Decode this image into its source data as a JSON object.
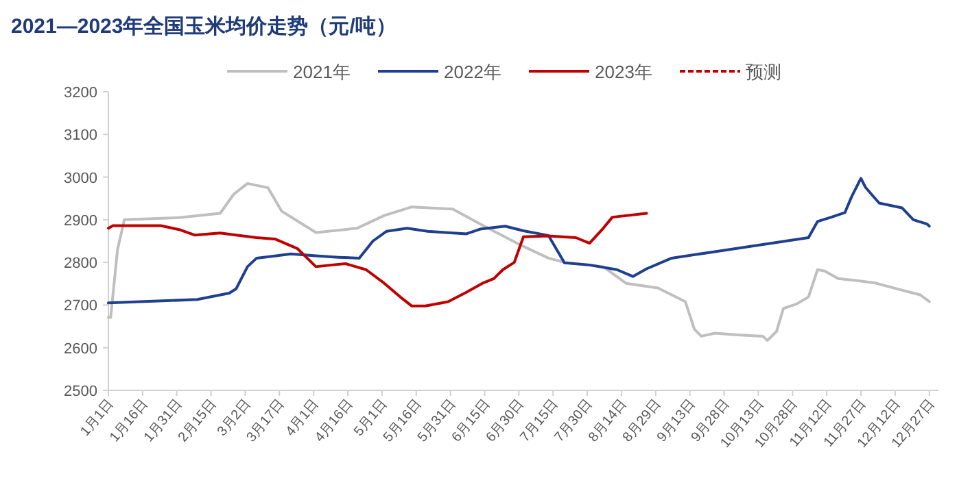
{
  "chart_data": {
    "type": "line",
    "title": "2021—2023年全国玉米均价走势（元/吨）",
    "xlim": [
      "--01-01",
      "--12-31"
    ],
    "xticks": [
      {
        "value": "--01-01",
        "label": "1月1日"
      },
      {
        "value": "--01-16",
        "label": "1月16日"
      },
      {
        "value": "--01-31",
        "label": "1月31日"
      },
      {
        "value": "--02-15",
        "label": "2月15日"
      },
      {
        "value": "--03-02",
        "label": "3月2日"
      },
      {
        "value": "--03-17",
        "label": "3月17日"
      },
      {
        "value": "--04-01",
        "label": "4月1日"
      },
      {
        "value": "--04-16",
        "label": "4月16日"
      },
      {
        "value": "--05-01",
        "label": "5月1日"
      },
      {
        "value": "--05-16",
        "label": "5月16日"
      },
      {
        "value": "--05-31",
        "label": "5月31日"
      },
      {
        "value": "--06-15",
        "label": "6月15日"
      },
      {
        "value": "--06-30",
        "label": "6月30日"
      },
      {
        "value": "--07-15",
        "label": "7月15日"
      },
      {
        "value": "--07-30",
        "label": "7月30日"
      },
      {
        "value": "--08-14",
        "label": "8月14日"
      },
      {
        "value": "--08-29",
        "label": "8月29日"
      },
      {
        "value": "--09-13",
        "label": "9月13日"
      },
      {
        "value": "--09-28",
        "label": "9月28日"
      },
      {
        "value": "--10-13",
        "label": "10月13日"
      },
      {
        "value": "--10-28",
        "label": "10月28日"
      },
      {
        "value": "--11-12",
        "label": "11月12日"
      },
      {
        "value": "--11-27",
        "label": "11月27日"
      },
      {
        "value": "--12-12",
        "label": "12月12日"
      },
      {
        "value": "--12-27",
        "label": "12月27日"
      }
    ],
    "ylim": [
      2500,
      3200
    ],
    "yticks": [
      2500,
      2600,
      2700,
      2800,
      2900,
      3000,
      3100,
      3200
    ],
    "grid": false,
    "legend": "top",
    "marker": "none",
    "series": [
      {
        "name": "2021年",
        "color": "#bfbfbf",
        "x": [
          "--01-01",
          "--01-02",
          "--01-05",
          "--01-08",
          "--02-01",
          "--02-19",
          "--02-25",
          "--03-03",
          "--03-12",
          "--03-18",
          "--04-02",
          "--04-20",
          "--05-02",
          "--05-14",
          "--06-01",
          "--06-13",
          "--07-01",
          "--07-13",
          "--07-20",
          "--08-06",
          "--08-16",
          "--08-30",
          "--09-11",
          "--09-15",
          "--09-18",
          "--09-24",
          "--10-04",
          "--10-15",
          "--10-17",
          "--10-21",
          "--10-24",
          "--10-30",
          "--11-04",
          "--11-08",
          "--11-11",
          "--11-17",
          "--11-26",
          "--12-03",
          "--12-15",
          "--12-23",
          "--12-27"
        ],
        "values": [
          2671,
          2671,
          2830,
          2900,
          2905,
          2915,
          2960,
          2985,
          2975,
          2920,
          2870,
          2880,
          2910,
          2930,
          2925,
          2890,
          2840,
          2810,
          2800,
          2790,
          2751,
          2740,
          2708,
          2643,
          2627,
          2634,
          2630,
          2627,
          2617,
          2638,
          2692,
          2703,
          2719,
          2783,
          2780,
          2762,
          2757,
          2752,
          2735,
          2724,
          2708
        ]
      },
      {
        "name": "2022年",
        "color": "#1f3f8f",
        "x": [
          "--01-01",
          "--02-09",
          "--02-23",
          "--02-26",
          "--03-03",
          "--03-07",
          "--03-15",
          "--03-22",
          "--04-03",
          "--04-12",
          "--04-21",
          "--04-27",
          "--05-03",
          "--05-12",
          "--05-21",
          "--06-07",
          "--06-13",
          "--06-24",
          "--07-02",
          "--07-13",
          "--07-20",
          "--07-31",
          "--08-12",
          "--08-19",
          "--08-25",
          "--09-05",
          "--09-25",
          "--10-15",
          "--11-04",
          "--11-08",
          "--11-14",
          "--11-20",
          "--11-23",
          "--11-27",
          "--11-29",
          "--12-05",
          "--12-15",
          "--12-20",
          "--12-26",
          "--12-27"
        ],
        "values": [
          2705,
          2713,
          2728,
          2738,
          2790,
          2810,
          2815,
          2820,
          2815,
          2812,
          2810,
          2850,
          2873,
          2880,
          2873,
          2867,
          2878,
          2885,
          2874,
          2863,
          2799,
          2794,
          2783,
          2767,
          2785,
          2810,
          2826,
          2842,
          2858,
          2896,
          2906,
          2917,
          2955,
          2997,
          2976,
          2939,
          2928,
          2900,
          2890,
          2885
        ]
      },
      {
        "name": "2023年",
        "color": "#c00000",
        "x": [
          "--01-01",
          "--01-03",
          "--01-24",
          "--02-01",
          "--02-08",
          "--02-19",
          "--02-26",
          "--03-07",
          "--03-15",
          "--03-25",
          "--04-02",
          "--04-09",
          "--04-15",
          "--04-24",
          "--05-02",
          "--05-09",
          "--05-14",
          "--05-20",
          "--05-30",
          "--06-07",
          "--06-14",
          "--06-19",
          "--06-23",
          "--06-28",
          "--07-02",
          "--07-13",
          "--07-25",
          "--07-31",
          "--08-06",
          "--08-10",
          "--08-25"
        ],
        "values": [
          2880,
          2886,
          2886,
          2877,
          2864,
          2869,
          2864,
          2858,
          2855,
          2832,
          2790,
          2794,
          2797,
          2783,
          2751,
          2719,
          2698,
          2698,
          2708,
          2730,
          2751,
          2762,
          2783,
          2800,
          2860,
          2862,
          2858,
          2845,
          2880,
          2906,
          2915
        ]
      },
      {
        "name": "预测",
        "color": "#c00000",
        "line_style": "dashed"
      }
    ]
  }
}
